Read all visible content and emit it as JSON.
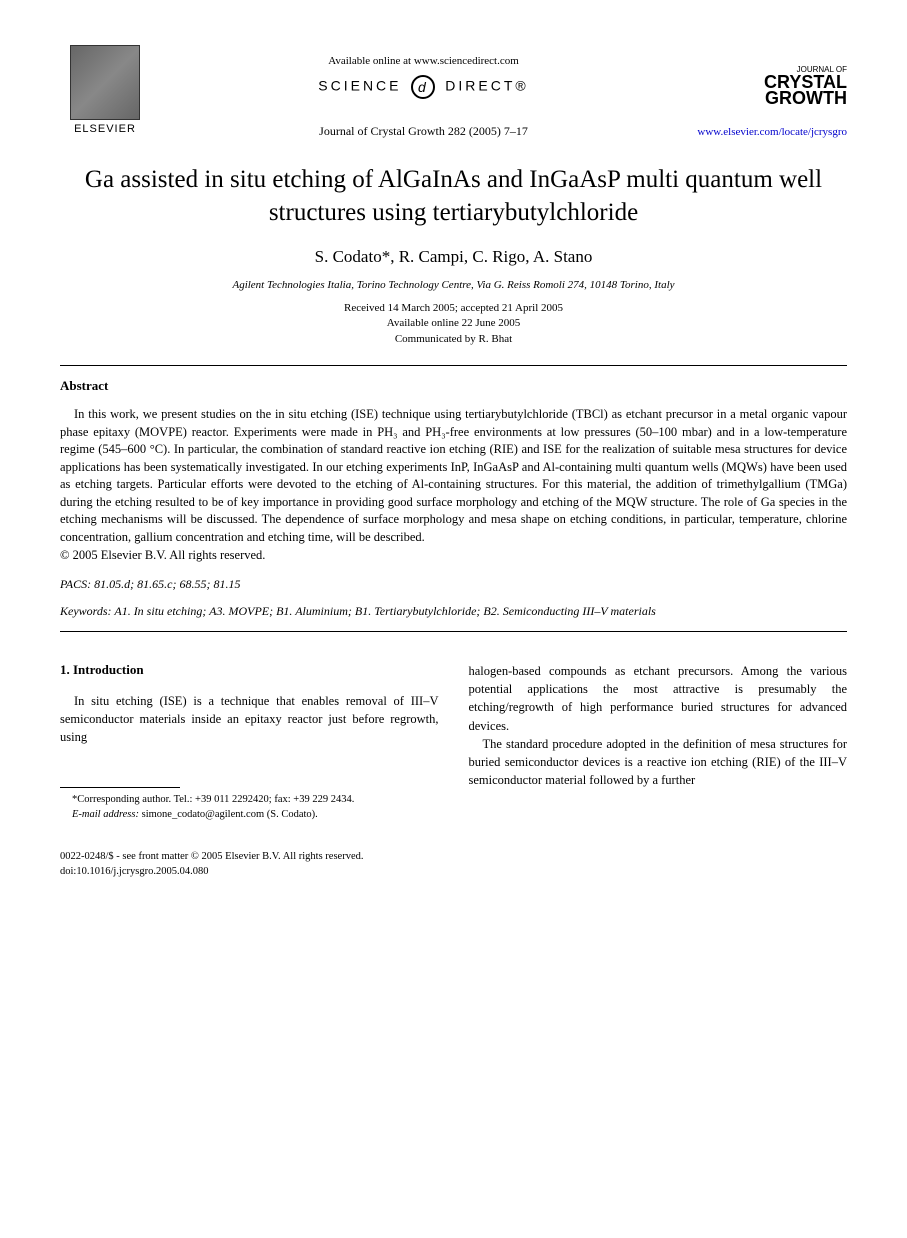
{
  "header": {
    "elsevier_label": "ELSEVIER",
    "available_online": "Available online at www.sciencedirect.com",
    "science": "SCIENCE",
    "direct": "DIRECT®",
    "journal_ref": "Journal of Crystal Growth 282 (2005) 7–17",
    "journal_of": "JOURNAL OF",
    "crystal": "CRYSTAL",
    "growth": "GROWTH",
    "journal_url": "www.elsevier.com/locate/jcrysgro"
  },
  "title": "Ga assisted in situ etching of AlGaInAs and InGaAsP multi quantum well structures using tertiarybutylchloride",
  "authors": "S. Codato*, R. Campi, C. Rigo, A. Stano",
  "affiliation": "Agilent Technologies Italia, Torino Technology Centre, Via G. Reiss Romoli 274, 10148 Torino, Italy",
  "dates": {
    "received": "Received 14 March 2005; accepted 21 April 2005",
    "available": "Available online 22 June 2005",
    "communicated": "Communicated by R. Bhat"
  },
  "abstract": {
    "heading": "Abstract",
    "text": "In this work, we present studies on the in situ etching (ISE) technique using tertiarybutylchloride (TBCl) as etchant precursor in a metal organic vapour phase epitaxy (MOVPE) reactor. Experiments were made in PH₃ and PH₃-free environments at low pressures (50–100 mbar) and in a low-temperature regime (545–600 °C). In particular, the combination of standard reactive ion etching (RIE) and ISE for the realization of suitable mesa structures for device applications has been systematically investigated. In our etching experiments InP, InGaAsP and Al-containing multi quantum wells (MQWs) have been used as etching targets. Particular efforts were devoted to the etching of Al-containing structures. For this material, the addition of trimethylgallium (TMGa) during the etching resulted to be of key importance in providing good surface morphology and etching of the MQW structure. The role of Ga species in the etching mechanisms will be discussed. The dependence of surface morphology and mesa shape on etching conditions, in particular, temperature, chlorine concentration, gallium concentration and etching time, will be described.",
    "copyright": "© 2005 Elsevier B.V. All rights reserved."
  },
  "pacs": {
    "label": "PACS:",
    "values": "81.05.d; 81.65.c; 68.55; 81.15"
  },
  "keywords": {
    "label": "Keywords:",
    "values": "A1. In situ etching; A3. MOVPE; B1. Aluminium; B1. Tertiarybutylchloride; B2. Semiconducting III–V materials"
  },
  "introduction": {
    "heading": "1. Introduction",
    "col1_p1": "In situ etching (ISE) is a technique that enables removal of III–V semiconductor materials inside an epitaxy reactor just before regrowth, using",
    "col2_p1": "halogen-based compounds as etchant precursors. Among the various potential applications the most attractive is presumably the etching/regrowth of high performance buried structures for advanced devices.",
    "col2_p2": "The standard procedure adopted in the definition of mesa structures for buried semiconductor devices is a reactive ion etching (RIE) of the III–V semiconductor material followed by a further"
  },
  "footnote": {
    "corresponding": "*Corresponding author. Tel.: +39 011 2292420; fax: +39 229 2434.",
    "email_label": "E-mail address:",
    "email": "simone_codato@agilent.com (S. Codato)."
  },
  "footer": {
    "line1": "0022-0248/$ - see front matter © 2005 Elsevier B.V. All rights reserved.",
    "line2": "doi:10.1016/j.jcrysgro.2005.04.080"
  }
}
